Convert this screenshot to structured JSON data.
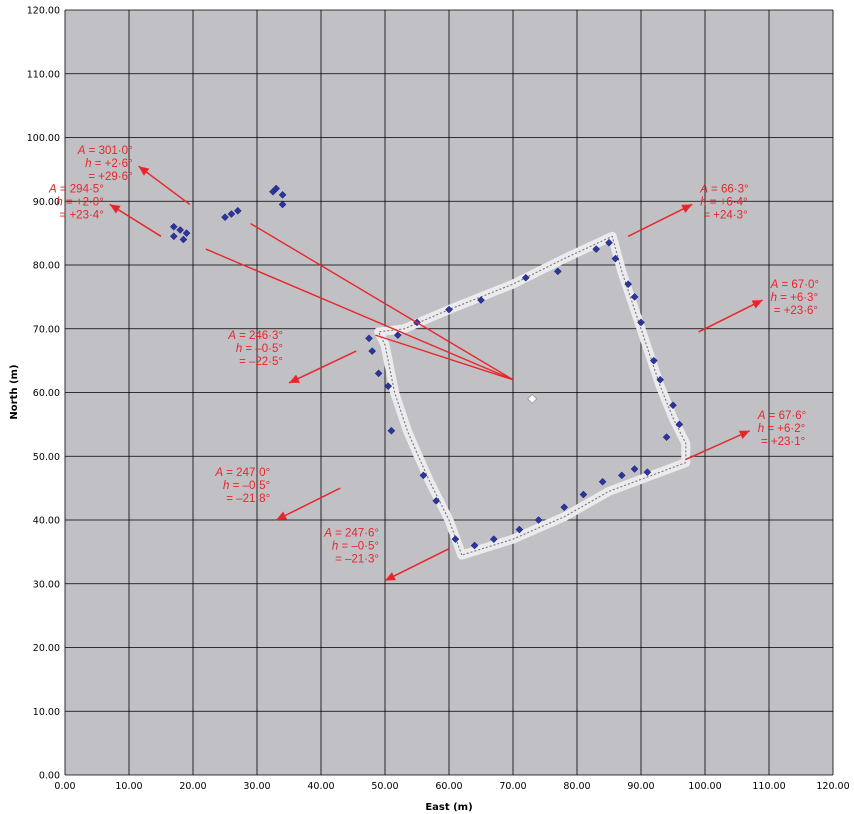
{
  "chart_data": {
    "type": "scatter",
    "title": "",
    "xlabel": "East (m)",
    "ylabel": "North (m)",
    "xlim": [
      0,
      120
    ],
    "ylim": [
      0,
      120
    ],
    "grid": true,
    "x_ticks": [
      "0.00",
      "10.00",
      "20.00",
      "30.00",
      "40.00",
      "50.00",
      "60.00",
      "70.00",
      "80.00",
      "90.00",
      "100.00",
      "110.00",
      "120.00"
    ],
    "y_ticks": [
      "0.00",
      "10.00",
      "20.00",
      "30.00",
      "40.00",
      "50.00",
      "60.00",
      "70.00",
      "80.00",
      "90.00",
      "100.00",
      "110.00",
      "120.00"
    ],
    "center_point": [
      73,
      59
    ],
    "wall_outline": [
      [
        62,
        34.5
      ],
      [
        60,
        40
      ],
      [
        57,
        46
      ],
      [
        55,
        50.5
      ],
      [
        53.5,
        54
      ],
      [
        51.5,
        60
      ],
      [
        50,
        67.5
      ],
      [
        49,
        69.5
      ],
      [
        53,
        70
      ],
      [
        60,
        73
      ],
      [
        70,
        77
      ],
      [
        78,
        81
      ],
      [
        85.5,
        84.5
      ],
      [
        87,
        79
      ],
      [
        89,
        73
      ],
      [
        91,
        67
      ],
      [
        93,
        61
      ],
      [
        95,
        56
      ],
      [
        97,
        52
      ],
      [
        97,
        49
      ],
      [
        93,
        47.5
      ],
      [
        85,
        44.5
      ],
      [
        78,
        40.5
      ],
      [
        70,
        37
      ],
      [
        62,
        34.5
      ]
    ],
    "blue_stones": [
      [
        17,
        86
      ],
      [
        18,
        85.5
      ],
      [
        19,
        85
      ],
      [
        17,
        84.5
      ],
      [
        18.5,
        84
      ],
      [
        25,
        87.5
      ],
      [
        26,
        88
      ],
      [
        27,
        88.5
      ],
      [
        32.5,
        91.5
      ],
      [
        33,
        92
      ],
      [
        34,
        91
      ],
      [
        34,
        89.5
      ],
      [
        47.5,
        68.5
      ],
      [
        48,
        66.5
      ],
      [
        49,
        63
      ],
      [
        50.5,
        61
      ],
      [
        51,
        54
      ],
      [
        52,
        69
      ],
      [
        55,
        71
      ],
      [
        60,
        73
      ],
      [
        65,
        74.5
      ],
      [
        72,
        78
      ],
      [
        77,
        79
      ],
      [
        83,
        82.5
      ],
      [
        85,
        83.5
      ],
      [
        86,
        81
      ],
      [
        88,
        77
      ],
      [
        89,
        75
      ],
      [
        90,
        71
      ],
      [
        92,
        65
      ],
      [
        93,
        62
      ],
      [
        95,
        58
      ],
      [
        96,
        55
      ],
      [
        94,
        53
      ],
      [
        56,
        47
      ],
      [
        58,
        43
      ],
      [
        61,
        37
      ],
      [
        64,
        36
      ],
      [
        67,
        37
      ],
      [
        71,
        38.5
      ],
      [
        74,
        40
      ],
      [
        78,
        42
      ],
      [
        81,
        44
      ],
      [
        84,
        46
      ],
      [
        87,
        47
      ],
      [
        89,
        48
      ],
      [
        91,
        47.5
      ]
    ],
    "alignments": [
      {
        "A": "301·0°",
        "h": "+2·6°",
        "d": "+29·6°",
        "from": [
          19.5,
          89.5
        ],
        "to": [
          11.5,
          95.5
        ]
      },
      {
        "A": "294·5°",
        "h": "+2·0°",
        "d": "+23·4°",
        "from": [
          15,
          84.5
        ],
        "to": [
          7,
          89.5
        ]
      },
      {
        "A": "66·3°",
        "h": "+6·4°",
        "d": "+24·3°",
        "from": [
          88,
          84.5
        ],
        "to": [
          98,
          89.5
        ]
      },
      {
        "A": "67·0°",
        "h": "+6·3°",
        "d": "+23·6°",
        "from": [
          99,
          69.5
        ],
        "to": [
          109,
          74.5
        ]
      },
      {
        "A": "67·6°",
        "h": "+6·2°",
        "d": "+23·1°",
        "from": [
          97,
          49.5
        ],
        "to": [
          107,
          54
        ]
      },
      {
        "A": "246·3°",
        "h": "–0·5°",
        "d": "–22·5°",
        "from": [
          45.5,
          66.5
        ],
        "to": [
          35,
          61.5
        ]
      },
      {
        "A": "247·0°",
        "h": "–0·5°",
        "d": "–21·8°",
        "from": [
          43,
          45
        ],
        "to": [
          33,
          40
        ]
      },
      {
        "A": "247·6°",
        "h": "–0·5°",
        "d": "–21·3°",
        "from": [
          60,
          35.5
        ],
        "to": [
          50,
          30.5
        ]
      }
    ],
    "sight_lines": [
      [
        [
          29,
          86.5
        ],
        [
          70,
          62
        ]
      ],
      [
        [
          22,
          82.5
        ],
        [
          70,
          62
        ]
      ],
      [
        [
          48.5,
          69
        ],
        [
          70,
          62
        ]
      ]
    ]
  }
}
